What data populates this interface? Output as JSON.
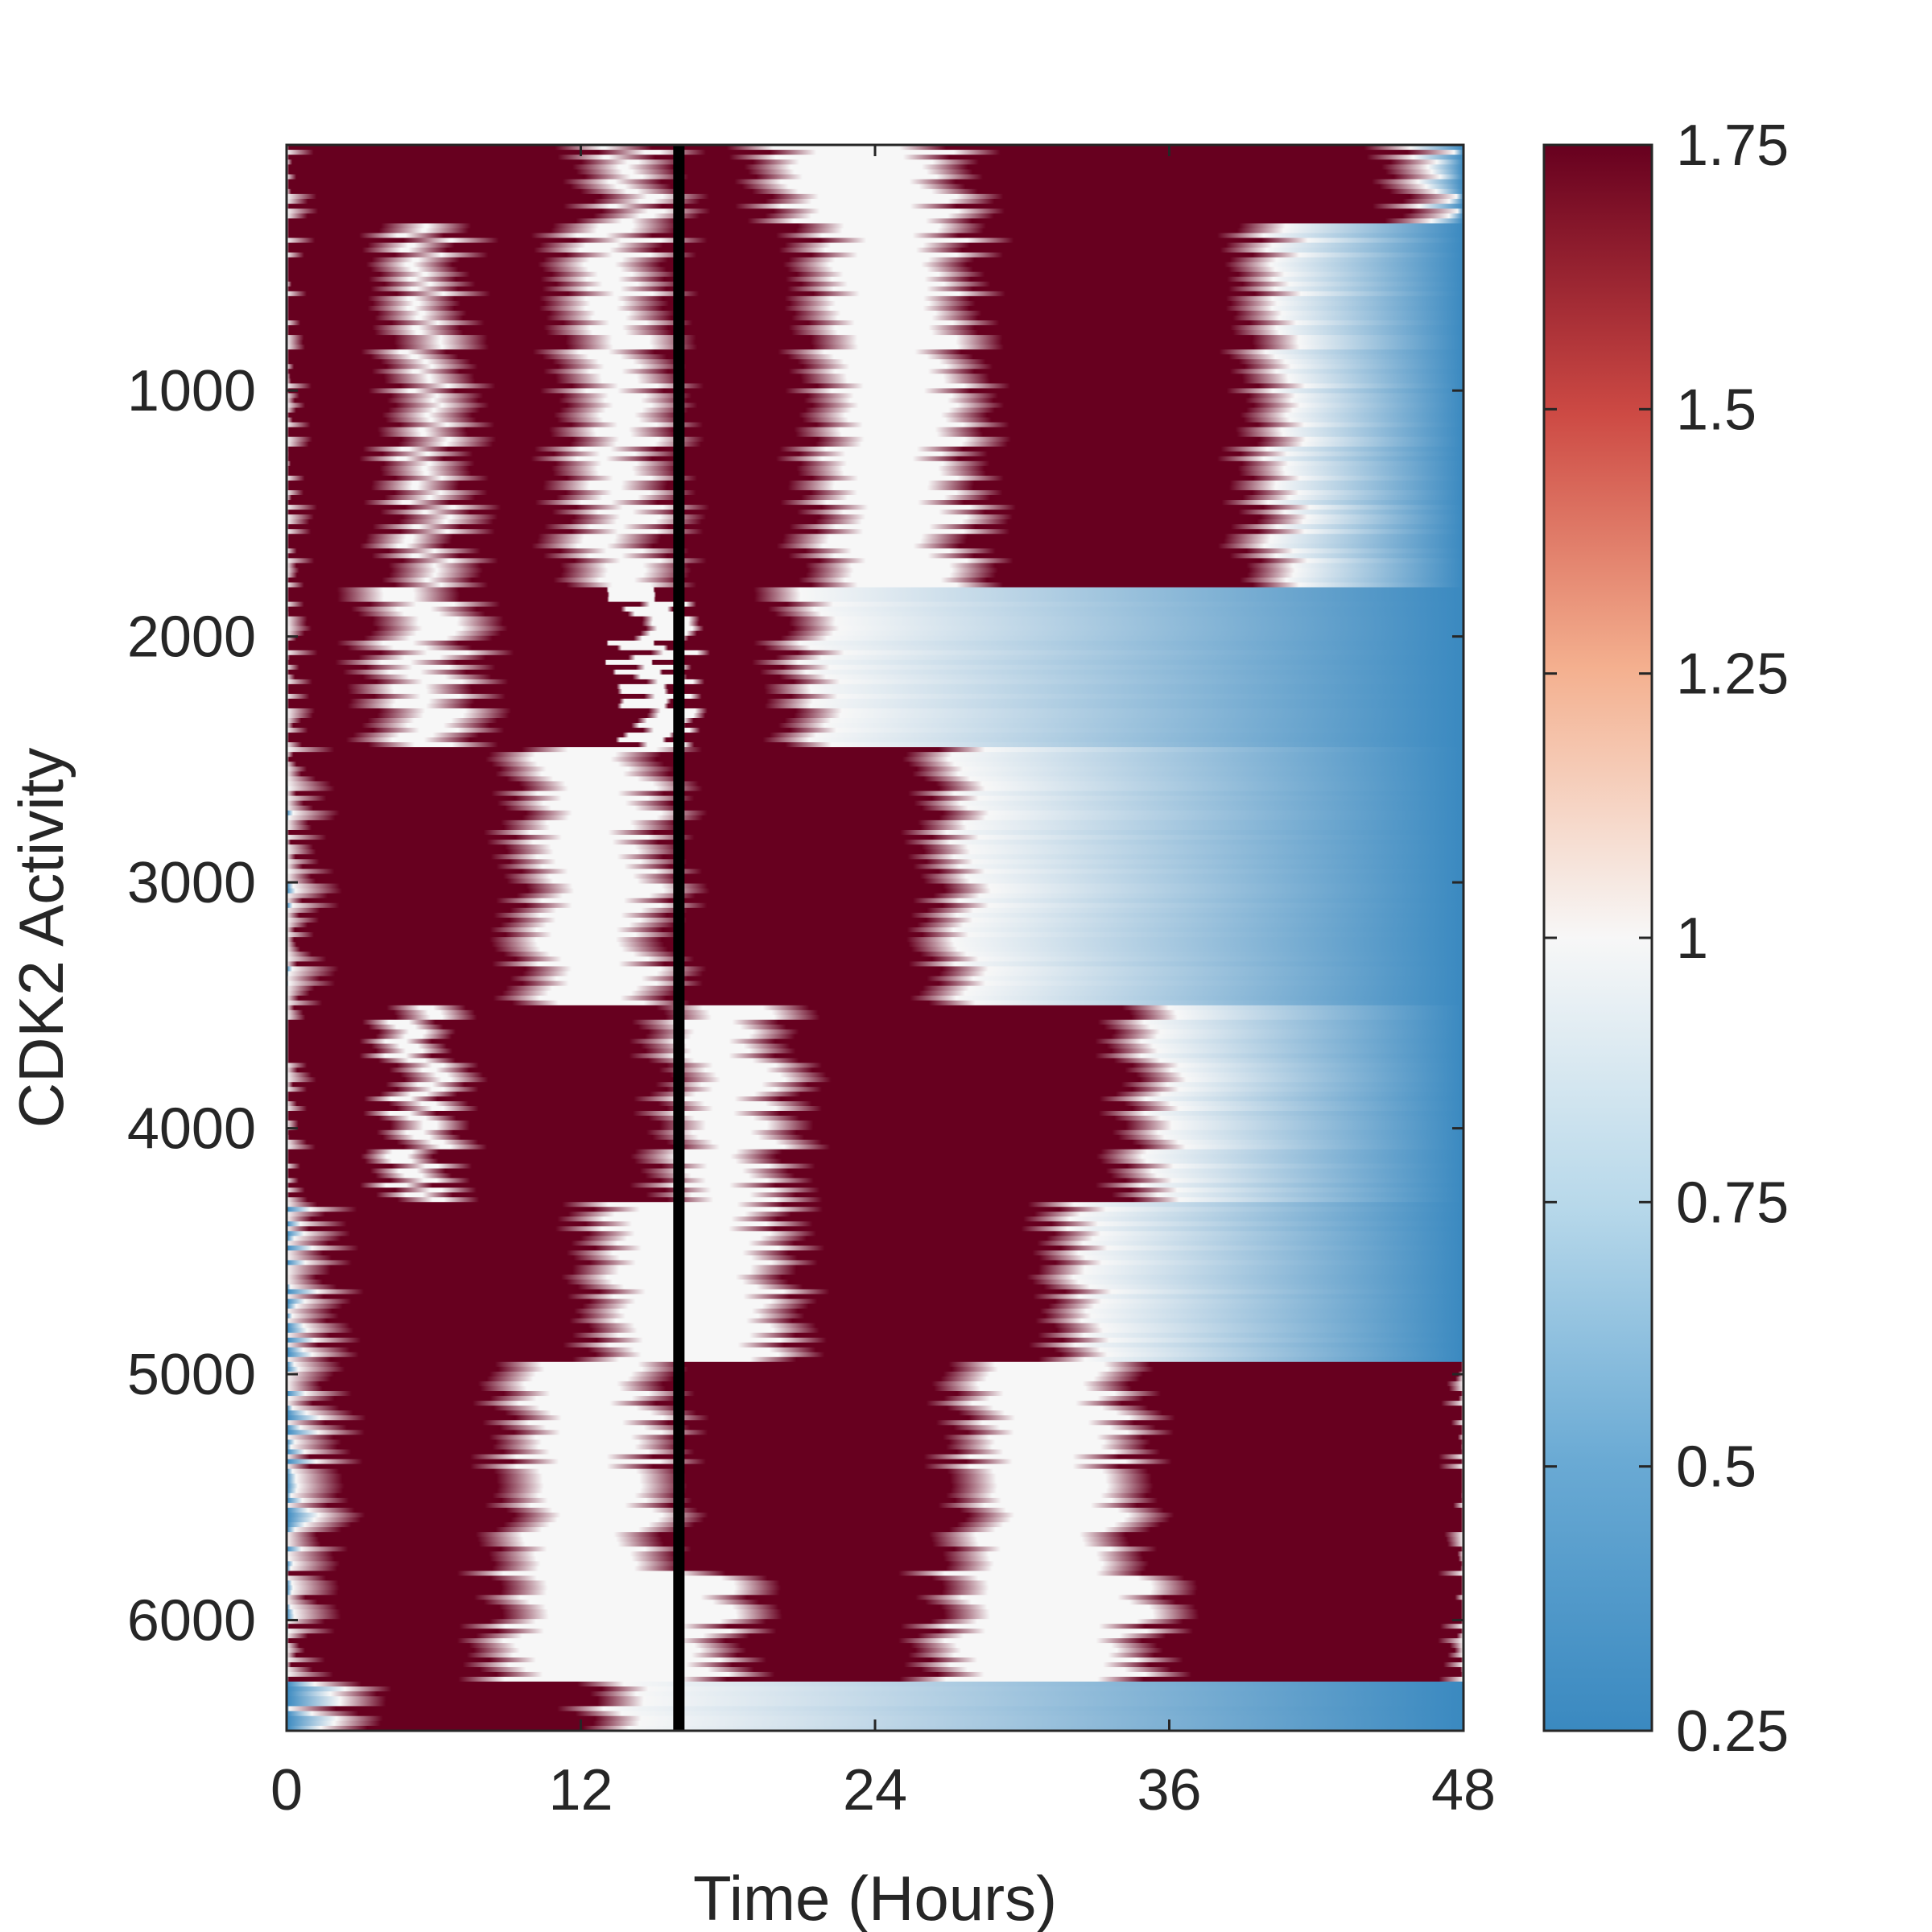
{
  "chart_data": {
    "type": "heatmap",
    "title": "",
    "xlabel": "Time (Hours)",
    "ylabel": "CDK2 Activity",
    "xlim": [
      0,
      48
    ],
    "ylim": [
      6450,
      1
    ],
    "x_ticks": [
      "0",
      "12",
      "24",
      "36",
      "48"
    ],
    "y_ticks": [
      "1000",
      "2000",
      "3000",
      "4000",
      "5000",
      "6000"
    ],
    "colorbar": {
      "min": 0.25,
      "max": 1.75,
      "ticks": [
        "0.25",
        "0.5",
        "0.75",
        "1",
        "1.25",
        "1.5",
        "1.75"
      ],
      "colormap": "blue-white-red"
    },
    "colors": {
      "low": "#3a89c0",
      "mid": "#f7f7f7",
      "high": "#67001f",
      "marker_line": "#000000"
    },
    "vertical_marker_hours": 16,
    "row_groups": [
      {
        "rows": [
          1,
          320
        ],
        "high_bands_hours": [
          [
            0,
            12
          ],
          [
            16,
            19
          ],
          [
            28,
            45
          ]
        ]
      },
      {
        "rows": [
          320,
          1800
        ],
        "high_bands_hours": [
          [
            0,
            4
          ],
          [
            7.5,
            11
          ],
          [
            16,
            21
          ],
          [
            28.5,
            39
          ]
        ]
      },
      {
        "rows": [
          1800,
          2450
        ],
        "high_bands_hours": [
          [
            0,
            3
          ],
          [
            8,
            14
          ],
          [
            16,
            20
          ]
        ]
      },
      {
        "rows": [
          2450,
          3500
        ],
        "high_bands_hours": [
          [
            1,
            9
          ],
          [
            16,
            26
          ]
        ]
      },
      {
        "rows": [
          3500,
          4300
        ],
        "high_bands_hours": [
          [
            0,
            4
          ],
          [
            7,
            15
          ],
          [
            21,
            34
          ]
        ]
      },
      {
        "rows": [
          4300,
          4950
        ],
        "high_bands_hours": [
          [
            2,
            12
          ],
          [
            21,
            31
          ]
        ]
      },
      {
        "rows": [
          4950,
          5800
        ],
        "high_bands_hours": [
          [
            2,
            8.5
          ],
          [
            16,
            27
          ],
          [
            35,
            48
          ]
        ]
      },
      {
        "rows": [
          5800,
          6250
        ],
        "high_bands_hours": [
          [
            1,
            8
          ],
          [
            19,
            26
          ],
          [
            36,
            48
          ]
        ]
      },
      {
        "rows": [
          6250,
          6450
        ],
        "high_bands_hours": [
          [
            3,
            12
          ]
        ]
      }
    ]
  }
}
